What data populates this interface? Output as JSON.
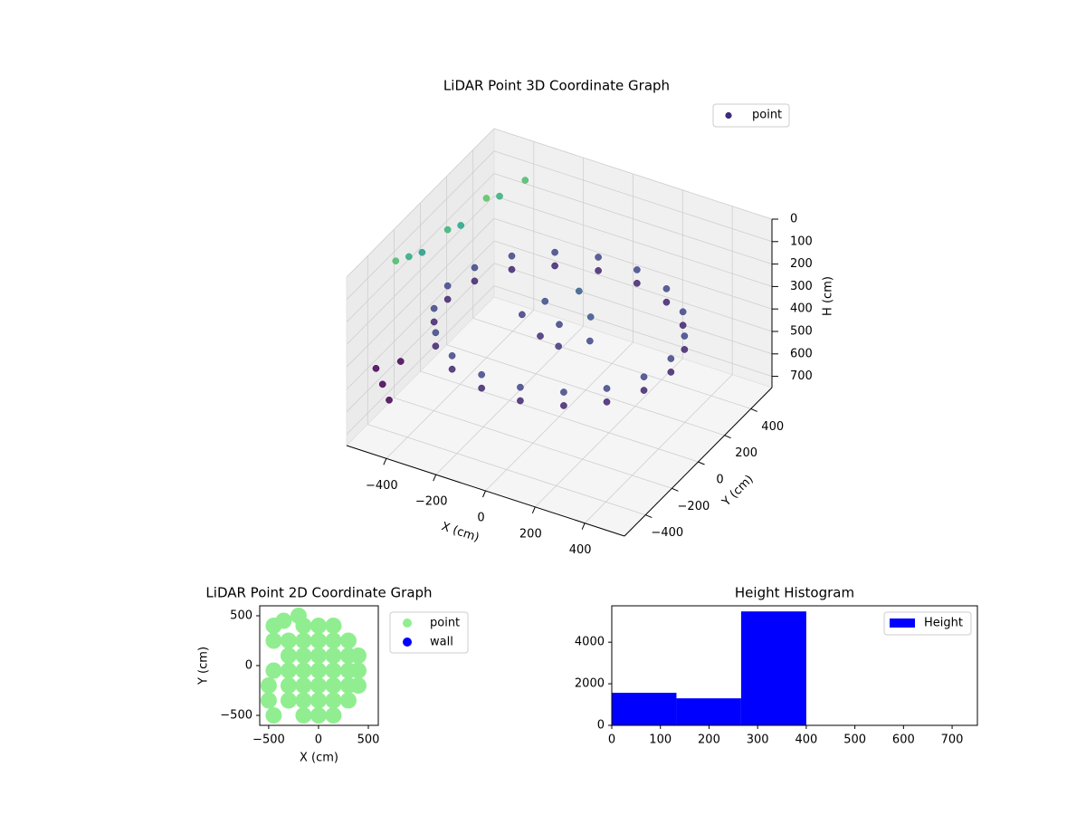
{
  "chart_data": [
    {
      "type": "scatter3d",
      "title": "LiDAR Point 3D Coordinate Graph",
      "xlabel": "X (cm)",
      "ylabel": "Y (cm)",
      "zlabel": "H (cm)",
      "xlim": [
        -560,
        560
      ],
      "ylim": [
        -560,
        560
      ],
      "zlim": [
        0,
        750
      ],
      "z_inverted": true,
      "xticks": [
        {
          "value": -400,
          "label": "−400"
        },
        {
          "value": -200,
          "label": "−200"
        },
        0,
        200,
        400
      ],
      "yticks": [
        {
          "value": -400,
          "label": "−400"
        },
        {
          "value": -200,
          "label": "−200"
        },
        0,
        200,
        400
      ],
      "zticks": [
        0,
        100,
        200,
        300,
        400,
        500,
        600,
        700
      ],
      "colormap": [
        "#7ad151",
        "#22a884",
        "#2a788e",
        "#414487",
        "#440154"
      ],
      "color_range": [
        0,
        450
      ],
      "legend": "upper right",
      "grid": true,
      "series": [
        {
          "name": "point",
          "color": "#3e2c7a",
          "x": [
            450,
            423,
            345,
            225,
            78,
            -78,
            -225,
            -345,
            -423,
            -450,
            -423,
            -345,
            -225,
            -78,
            78,
            225,
            345,
            423,
            450,
            423,
            345,
            225,
            78,
            -78,
            -225,
            -345,
            -423,
            -450,
            -423,
            -345,
            -225,
            -78,
            78,
            225,
            345,
            423,
            0,
            100,
            -100,
            50,
            -50,
            150,
            0,
            -150,
            -500,
            -500,
            -500,
            -450,
            -450,
            -400,
            -400,
            -350,
            -500,
            -500,
            -500,
            -480
          ],
          "y": [
            0,
            154,
            289,
            390,
            443,
            443,
            390,
            289,
            154,
            0,
            -154,
            -289,
            -390,
            -443,
            -443,
            -390,
            -289,
            -154,
            0,
            154,
            289,
            390,
            443,
            443,
            390,
            289,
            154,
            0,
            -154,
            -289,
            -390,
            -443,
            -443,
            -390,
            -289,
            -154,
            0,
            50,
            80,
            -100,
            -50,
            -50,
            150,
            0,
            -300,
            -200,
            -100,
            0,
            100,
            200,
            300,
            400,
            -450,
            -400,
            -350,
            -300
          ],
          "z": [
            330,
            330,
            330,
            330,
            330,
            330,
            330,
            330,
            330,
            330,
            330,
            330,
            330,
            330,
            330,
            330,
            330,
            330,
            390,
            390,
            390,
            390,
            390,
            390,
            390,
            390,
            390,
            390,
            390,
            390,
            390,
            390,
            390,
            390,
            390,
            390,
            340,
            300,
            320,
            360,
            380,
            330,
            280,
            350,
            60,
            100,
            140,
            80,
            120,
            40,
            90,
            60,
            450,
            550,
            650,
            500
          ]
        }
      ]
    },
    {
      "type": "scatter",
      "title": "LiDAR Point 2D Coordinate Graph",
      "xlabel": "X (cm)",
      "ylabel": "Y (cm)",
      "xlim": [
        -590,
        600
      ],
      "ylim": [
        -600,
        600
      ],
      "xticks": [
        {
          "value": -500,
          "label": "−500"
        },
        0,
        500
      ],
      "yticks": [
        {
          "value": -500,
          "label": "−500"
        },
        0,
        500
      ],
      "legend": "outside upper right",
      "series": [
        {
          "name": "point",
          "color": "#90ee90",
          "x": [
            0,
            0,
            0,
            0,
            0,
            150,
            150,
            150,
            150,
            150,
            -150,
            -150,
            -150,
            -150,
            -150,
            300,
            300,
            300,
            300,
            300,
            -300,
            -300,
            -300,
            -300,
            -300,
            -450,
            -500,
            -500,
            -450,
            -450,
            -350,
            -200,
            -150,
            -450,
            400,
            400,
            400,
            150,
            -150,
            0,
            150,
            0
          ],
          "y": [
            -350,
            -200,
            -50,
            100,
            250,
            -350,
            -200,
            -50,
            100,
            250,
            -350,
            -200,
            -50,
            100,
            250,
            -350,
            -200,
            -50,
            100,
            250,
            -350,
            -200,
            -50,
            100,
            250,
            -500,
            -350,
            -200,
            -50,
            250,
            450,
            500,
            400,
            400,
            -50,
            100,
            -200,
            -500,
            -500,
            -500,
            400,
            400
          ]
        },
        {
          "name": "wall",
          "color": "#0000ff",
          "x": [],
          "y": []
        }
      ]
    },
    {
      "type": "histogram",
      "title": "Height Histogram",
      "bins": [
        0,
        133,
        266,
        400,
        532,
        666,
        799
      ],
      "xlim": [
        0,
        752
      ],
      "ylim": [
        0,
        5750
      ],
      "xticks": [
        0,
        100,
        200,
        300,
        400,
        500,
        600,
        700
      ],
      "yticks": [
        0,
        2000,
        4000
      ],
      "legend": "upper right",
      "series": [
        {
          "name": "Height",
          "color": "#0000ff",
          "values": [
            1565,
            1300,
            5480,
            20,
            0,
            20
          ]
        }
      ]
    }
  ]
}
